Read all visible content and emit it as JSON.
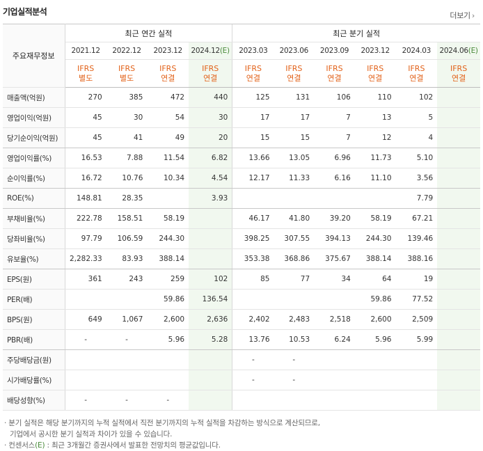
{
  "header": {
    "title": "기업실적분석",
    "more": "더보기",
    "more_chevron": "›"
  },
  "table": {
    "label_header": "주요재무정보",
    "groups": {
      "annual": "최근 연간 실적",
      "quarter": "최근 분기 실적"
    },
    "periods": [
      {
        "date": "2021.12",
        "est": "",
        "ifrs": "IFRS",
        "basis": "별도"
      },
      {
        "date": "2022.12",
        "est": "",
        "ifrs": "IFRS",
        "basis": "별도"
      },
      {
        "date": "2023.12",
        "est": "",
        "ifrs": "IFRS",
        "basis": "연결"
      },
      {
        "date": "2024.12",
        "est": "(E)",
        "ifrs": "IFRS",
        "basis": "연결"
      },
      {
        "date": "2023.03",
        "est": "",
        "ifrs": "IFRS",
        "basis": "연결"
      },
      {
        "date": "2023.06",
        "est": "",
        "ifrs": "IFRS",
        "basis": "연결"
      },
      {
        "date": "2023.09",
        "est": "",
        "ifrs": "IFRS",
        "basis": "연결"
      },
      {
        "date": "2023.12",
        "est": "",
        "ifrs": "IFRS",
        "basis": "연결"
      },
      {
        "date": "2024.03",
        "est": "",
        "ifrs": "IFRS",
        "basis": "연결"
      },
      {
        "date": "2024.06",
        "est": "(E)",
        "ifrs": "IFRS",
        "basis": "연결"
      }
    ],
    "rows": [
      {
        "label": "매출액(억원)",
        "values": [
          "270",
          "385",
          "472",
          "440",
          "125",
          "131",
          "106",
          "110",
          "102",
          ""
        ]
      },
      {
        "label": "영업이익(억원)",
        "values": [
          "45",
          "30",
          "54",
          "30",
          "17",
          "17",
          "7",
          "13",
          "5",
          ""
        ]
      },
      {
        "label": "당기순이익(억원)",
        "values": [
          "45",
          "41",
          "49",
          "20",
          "15",
          "15",
          "7",
          "12",
          "4",
          ""
        ]
      },
      {
        "label": "영업이익률(%)",
        "values": [
          "16.53",
          "7.88",
          "11.54",
          "6.82",
          "13.66",
          "13.05",
          "6.96",
          "11.73",
          "5.10",
          ""
        ]
      },
      {
        "label": "순이익률(%)",
        "values": [
          "16.72",
          "10.76",
          "10.34",
          "4.54",
          "12.17",
          "11.33",
          "6.16",
          "11.10",
          "3.56",
          ""
        ]
      },
      {
        "label": "ROE(%)",
        "values": [
          "148.81",
          "28.35",
          "",
          "3.93",
          "",
          "",
          "",
          "",
          "7.79",
          ""
        ]
      },
      {
        "label": "부채비율(%)",
        "values": [
          "222.78",
          "158.51",
          "58.19",
          "",
          "46.17",
          "41.80",
          "39.20",
          "58.19",
          "67.21",
          ""
        ]
      },
      {
        "label": "당좌비율(%)",
        "values": [
          "97.79",
          "106.59",
          "244.30",
          "",
          "398.25",
          "307.55",
          "394.13",
          "244.30",
          "139.46",
          ""
        ]
      },
      {
        "label": "유보율(%)",
        "values": [
          "2,282.33",
          "83.93",
          "388.14",
          "",
          "353.38",
          "368.86",
          "375.67",
          "388.14",
          "388.16",
          ""
        ]
      },
      {
        "label": "EPS(원)",
        "values": [
          "361",
          "243",
          "259",
          "102",
          "85",
          "77",
          "34",
          "64",
          "19",
          ""
        ]
      },
      {
        "label": "PER(배)",
        "values": [
          "",
          "",
          "59.86",
          "136.54",
          "",
          "",
          "",
          "59.86",
          "77.52",
          ""
        ]
      },
      {
        "label": "BPS(원)",
        "values": [
          "649",
          "1,067",
          "2,600",
          "2,636",
          "2,402",
          "2,483",
          "2,518",
          "2,600",
          "2,509",
          ""
        ]
      },
      {
        "label": "PBR(배)",
        "values": [
          "-",
          "-",
          "5.96",
          "5.28",
          "13.76",
          "10.53",
          "6.24",
          "5.96",
          "5.99",
          ""
        ]
      },
      {
        "label": "주당배당금(원)",
        "values": [
          "",
          "",
          "",
          "",
          "-",
          "-",
          "",
          "",
          "",
          ""
        ]
      },
      {
        "label": "시가배당률(%)",
        "values": [
          "",
          "",
          "",
          "",
          "-",
          "-",
          "",
          "",
          "",
          ""
        ]
      },
      {
        "label": "배당성향(%)",
        "values": [
          "-",
          "-",
          "-",
          "",
          "",
          "",
          "",
          "",
          "",
          ""
        ]
      }
    ]
  },
  "notes": {
    "line1": "분기 실적은 해당 분기까지의 누적 실적에서 직전 분기까지의 누적 실적을 차감하는 방식으로 계산되므로,",
    "line2": "기업에서 공시한 분기 실적과 차이가 있을 수 있습니다.",
    "line3_prefix": "컨센서스",
    "line3_e": "(E)",
    "line3_rest": ": 최근 3개월간 증권사에서 발표한 전망치의 평균값입니다.",
    "bullet": "·"
  },
  "colors": {
    "ifrs": "#e2621a",
    "estimate_bg": "#f1f8ef",
    "border": "#d8d8d8"
  }
}
